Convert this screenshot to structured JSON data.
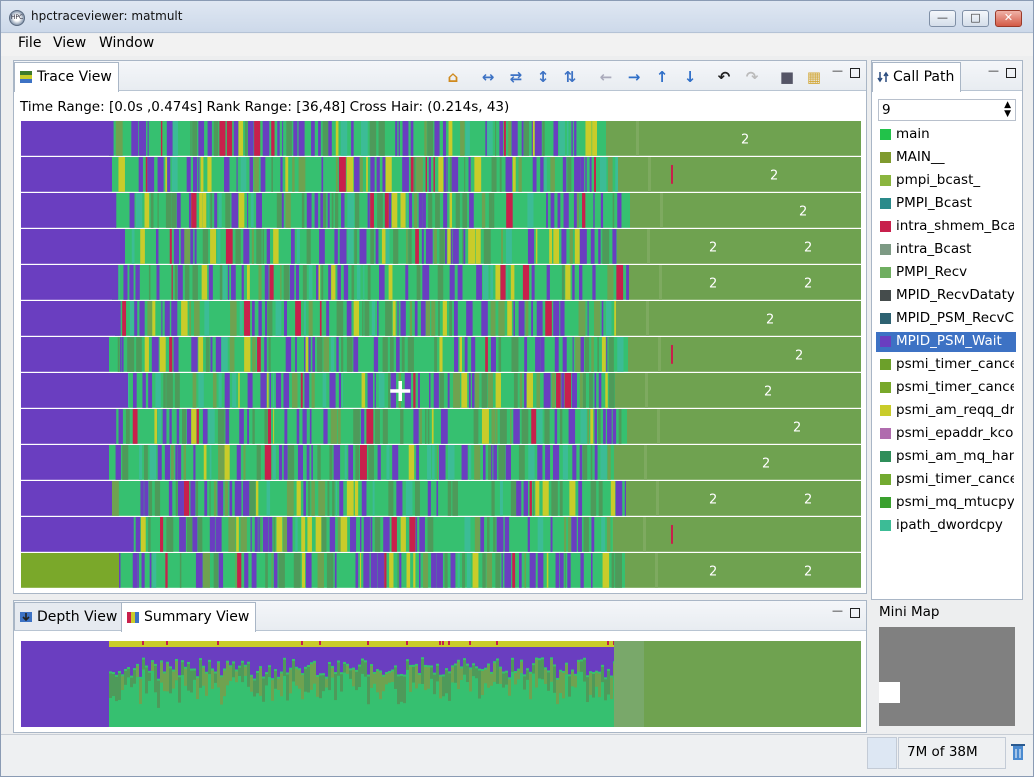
{
  "window": {
    "title": "hpctraceviewer: matmult",
    "app_icon_text": "HPC"
  },
  "menubar": [
    {
      "label": "File"
    },
    {
      "label": "View"
    },
    {
      "label": "Window"
    }
  ],
  "trace_view": {
    "tab_label": "Trace View",
    "info": "Time Range: [0.0s ,0.474s]  Rank Range: [36,48]  Cross Hair: (0.214s, 43)",
    "toolbar": [
      "home-icon",
      "expand-horizontal-icon",
      "shrink-horizontal-icon",
      "expand-vertical-icon",
      "shrink-vertical-icon",
      "arrow-left-icon",
      "arrow-right-icon",
      "arrow-up-icon",
      "arrow-down-icon",
      "undo-icon",
      "redo-icon",
      "save-icon",
      "open-folder-icon"
    ],
    "rows": [
      {
        "labels": [
          "2"
        ]
      },
      {
        "labels": [
          "2"
        ]
      },
      {
        "labels": [
          "2"
        ]
      },
      {
        "labels": [
          "2",
          "2"
        ]
      },
      {
        "labels": [
          "2",
          "2"
        ]
      },
      {
        "labels": [
          "2"
        ]
      },
      {
        "labels": [
          "2"
        ]
      },
      {
        "labels": [
          "2"
        ]
      },
      {
        "labels": [
          "2"
        ]
      },
      {
        "labels": [
          "2"
        ]
      },
      {
        "labels": [
          "2",
          "2"
        ]
      },
      {
        "labels": []
      },
      {
        "labels": [
          "2",
          "2"
        ]
      }
    ],
    "crosshair_time_s": 0.214,
    "crosshair_rank": 43,
    "time_range_s": [
      0.0,
      0.474
    ],
    "rank_range": [
      36,
      48
    ]
  },
  "depth_view": {
    "tab_label": "Depth View"
  },
  "summary_view": {
    "tab_label": "Summary View"
  },
  "call_path": {
    "tab_label": "Call Path",
    "depth_value": "9",
    "items": [
      {
        "label": "main",
        "color": "#22c24a"
      },
      {
        "label": "MAIN__",
        "color": "#7f9a2e"
      },
      {
        "label": "pmpi_bcast_",
        "color": "#8ab53e"
      },
      {
        "label": "PMPI_Bcast",
        "color": "#2a8a8a"
      },
      {
        "label": "intra_shmem_Bcast",
        "color": "#c8204c"
      },
      {
        "label": "intra_Bcast",
        "color": "#7d9a84"
      },
      {
        "label": "PMPI_Recv",
        "color": "#6fae60"
      },
      {
        "label": "MPID_RecvDatatype",
        "color": "#454c4c"
      },
      {
        "label": "MPID_PSM_RecvComplete",
        "color": "#2e6272"
      },
      {
        "label": "MPID_PSM_Wait",
        "color": "#6a3ec0"
      },
      {
        "label": "psmi_timer_cancel",
        "color": "#6ca02a"
      },
      {
        "label": "psmi_timer_cancel",
        "color": "#78a82a"
      },
      {
        "label": "psmi_am_reqq_drain",
        "color": "#c9cc2a"
      },
      {
        "label": "psmi_epaddr_kcopy",
        "color": "#b06cae"
      },
      {
        "label": "psmi_am_mq_handler",
        "color": "#2f8e5a"
      },
      {
        "label": "psmi_timer_cancel",
        "color": "#72aa30"
      },
      {
        "label": "psmi_mq_mtucpy",
        "color": "#3aa02e"
      },
      {
        "label": "ipath_dwordcpy",
        "color": "#3cbc96"
      }
    ],
    "selected_index": 9
  },
  "mini_map": {
    "label": "Mini Map"
  },
  "status": {
    "memory": "7M of 38M"
  },
  "colors": {
    "purple": "#6a3ec0",
    "green_body": "#6fa250",
    "bright_green": "#36c070",
    "dark_green": "#4e8a4a",
    "yellow": "#c9cc2a",
    "lime": "#7aa82a"
  }
}
